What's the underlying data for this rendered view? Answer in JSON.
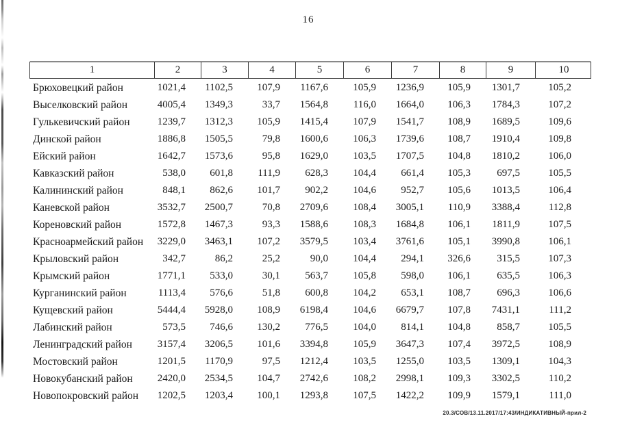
{
  "page": {
    "number": "16"
  },
  "footer": {
    "stamp": "20.3/СОВ/13.11.2017/17:43/ИНДИКАТИВНЫЙ-прил-2"
  },
  "colors": {
    "text": "#1a1a1a",
    "border": "#2f2f2f",
    "background": "#ffffff"
  },
  "table": {
    "header": [
      "1",
      "2",
      "3",
      "4",
      "5",
      "6",
      "7",
      "8",
      "9",
      "10"
    ],
    "rows": [
      {
        "name": "Брюховецкий район",
        "values": [
          "1021,4",
          "1102,5",
          "107,9",
          "1167,6",
          "105,9",
          "1236,9",
          "105,9",
          "1301,7",
          "105,2"
        ]
      },
      {
        "name": "Выселковский район",
        "values": [
          "4005,4",
          "1349,3",
          "33,7",
          "1564,8",
          "116,0",
          "1664,0",
          "106,3",
          "1784,3",
          "107,2"
        ]
      },
      {
        "name": "Гулькевичский район",
        "values": [
          "1239,7",
          "1312,3",
          "105,9",
          "1415,4",
          "107,9",
          "1541,7",
          "108,9",
          "1689,5",
          "109,6"
        ]
      },
      {
        "name": "Динской район",
        "values": [
          "1886,8",
          "1505,5",
          "79,8",
          "1600,6",
          "106,3",
          "1739,6",
          "108,7",
          "1910,4",
          "109,8"
        ]
      },
      {
        "name": "Ейский район",
        "values": [
          "1642,7",
          "1573,6",
          "95,8",
          "1629,0",
          "103,5",
          "1707,5",
          "104,8",
          "1810,2",
          "106,0"
        ]
      },
      {
        "name": "Кавказский район",
        "values": [
          "538,0",
          "601,8",
          "111,9",
          "628,3",
          "104,4",
          "661,4",
          "105,3",
          "697,5",
          "105,5"
        ]
      },
      {
        "name": "Калининский район",
        "values": [
          "848,1",
          "862,6",
          "101,7",
          "902,2",
          "104,6",
          "952,7",
          "105,6",
          "1013,5",
          "106,4"
        ]
      },
      {
        "name": "Каневской район",
        "values": [
          "3532,7",
          "2500,7",
          "70,8",
          "2709,6",
          "108,4",
          "3005,1",
          "110,9",
          "3388,4",
          "112,8"
        ]
      },
      {
        "name": "Кореновский район",
        "values": [
          "1572,8",
          "1467,3",
          "93,3",
          "1588,6",
          "108,3",
          "1684,8",
          "106,1",
          "1811,9",
          "107,5"
        ]
      },
      {
        "name": "Красноармейский район",
        "values": [
          "3229,0",
          "3463,1",
          "107,2",
          "3579,5",
          "103,4",
          "3761,6",
          "105,1",
          "3990,8",
          "106,1"
        ]
      },
      {
        "name": "Крыловский район",
        "values": [
          "342,7",
          "86,2",
          "25,2",
          "90,0",
          "104,4",
          "294,1",
          "326,6",
          "315,5",
          "107,3"
        ]
      },
      {
        "name": "Крымский район",
        "values": [
          "1771,1",
          "533,0",
          "30,1",
          "563,7",
          "105,8",
          "598,0",
          "106,1",
          "635,5",
          "106,3"
        ]
      },
      {
        "name": "Курганинский район",
        "values": [
          "1113,4",
          "576,6",
          "51,8",
          "600,8",
          "104,2",
          "653,1",
          "108,7",
          "696,3",
          "106,6"
        ]
      },
      {
        "name": "Кущевский район",
        "values": [
          "5444,4",
          "5928,0",
          "108,9",
          "6198,4",
          "104,6",
          "6679,7",
          "107,8",
          "7431,1",
          "111,2"
        ]
      },
      {
        "name": "Лабинский район",
        "values": [
          "573,5",
          "746,6",
          "130,2",
          "776,5",
          "104,0",
          "814,1",
          "104,8",
          "858,7",
          "105,5"
        ]
      },
      {
        "name": "Ленинградский район",
        "values": [
          "3157,4",
          "3206,5",
          "101,6",
          "3394,8",
          "105,9",
          "3647,3",
          "107,4",
          "3972,5",
          "108,9"
        ]
      },
      {
        "name": "Мостовский район",
        "values": [
          "1201,5",
          "1170,9",
          "97,5",
          "1212,4",
          "103,5",
          "1255,0",
          "103,5",
          "1309,1",
          "104,3"
        ]
      },
      {
        "name": "Новокубанский район",
        "values": [
          "2420,0",
          "2534,5",
          "104,7",
          "2742,6",
          "108,2",
          "2998,1",
          "109,3",
          "3302,5",
          "110,2"
        ]
      },
      {
        "name": "Новопокровский район",
        "values": [
          "1202,5",
          "1203,4",
          "100,1",
          "1293,8",
          "107,5",
          "1422,2",
          "109,9",
          "1579,1",
          "111,0"
        ]
      }
    ]
  }
}
